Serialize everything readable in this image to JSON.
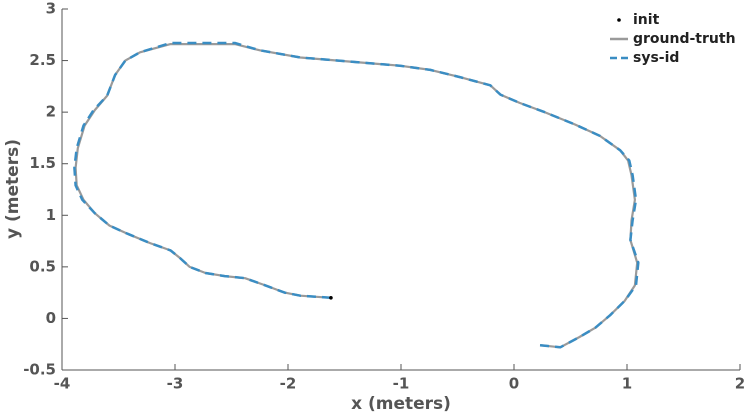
{
  "chart_data": {
    "type": "line",
    "xlabel": "x (meters)",
    "ylabel": "y (meters)",
    "xlim": [
      -4,
      2
    ],
    "ylim": [
      -0.5,
      3
    ],
    "xticks": [
      -4,
      -3,
      -2,
      -1,
      0,
      1,
      2
    ],
    "yticks": [
      -0.5,
      0,
      0.5,
      1,
      1.5,
      2,
      2.5,
      3
    ],
    "legend": "upper right",
    "series": [
      {
        "name": "init",
        "color": "#000000",
        "marker": "dot",
        "x": [
          -1.62
        ],
        "values": [
          0.2
        ]
      },
      {
        "name": "ground-truth",
        "color": "#9a9a9a",
        "linestyle": "solid",
        "x": [
          -1.62,
          -1.89,
          -2.03,
          -2.2,
          -2.38,
          -2.56,
          -2.73,
          -2.87,
          -2.96,
          -3.04,
          -3.22,
          -3.44,
          -3.58,
          -3.71,
          -3.81,
          -3.87,
          -3.88,
          -3.86,
          -3.8,
          -3.71,
          -3.6,
          -3.53,
          -3.44,
          -3.31,
          -3.04,
          -2.78,
          -2.47,
          -2.25,
          -1.89,
          -1.45,
          -1.01,
          -0.74,
          -0.48,
          -0.21,
          -0.12,
          0.05,
          0.27,
          0.54,
          0.76,
          0.94,
          1.01,
          1.04,
          1.07,
          1.04,
          1.03,
          1.09,
          1.07,
          0.98,
          0.85,
          0.72,
          0.58,
          0.41,
          0.23
        ],
        "values": [
          0.2,
          0.22,
          0.25,
          0.32,
          0.39,
          0.41,
          0.44,
          0.5,
          0.59,
          0.66,
          0.73,
          0.83,
          0.9,
          1.02,
          1.15,
          1.29,
          1.46,
          1.65,
          1.87,
          2.02,
          2.16,
          2.36,
          2.5,
          2.58,
          2.66,
          2.66,
          2.66,
          2.6,
          2.53,
          2.49,
          2.45,
          2.41,
          2.34,
          2.26,
          2.17,
          2.09,
          2.0,
          1.88,
          1.77,
          1.63,
          1.53,
          1.39,
          1.15,
          0.95,
          0.76,
          0.54,
          0.32,
          0.17,
          0.03,
          -0.09,
          -0.18,
          -0.28,
          -0.26
        ]
      },
      {
        "name": "sys-id",
        "color": "#3a8dc3",
        "linestyle": "dashed",
        "x": [
          -1.62,
          -1.89,
          -2.03,
          -2.2,
          -2.38,
          -2.56,
          -2.73,
          -2.87,
          -2.96,
          -3.04,
          -3.22,
          -3.44,
          -3.58,
          -3.71,
          -3.82,
          -3.88,
          -3.89,
          -3.87,
          -3.81,
          -3.72,
          -3.6,
          -3.53,
          -3.44,
          -3.31,
          -3.04,
          -2.78,
          -2.47,
          -2.25,
          -1.89,
          -1.45,
          -1.01,
          -0.74,
          -0.48,
          -0.21,
          -0.12,
          0.05,
          0.27,
          0.54,
          0.76,
          0.94,
          1.02,
          1.05,
          1.08,
          1.05,
          1.03,
          1.1,
          1.08,
          0.98,
          0.85,
          0.72,
          0.58,
          0.41,
          0.23
        ],
        "values": [
          0.2,
          0.22,
          0.25,
          0.32,
          0.39,
          0.41,
          0.44,
          0.5,
          0.59,
          0.66,
          0.73,
          0.83,
          0.9,
          1.02,
          1.15,
          1.29,
          1.46,
          1.65,
          1.87,
          2.02,
          2.16,
          2.36,
          2.5,
          2.58,
          2.67,
          2.67,
          2.67,
          2.6,
          2.53,
          2.49,
          2.45,
          2.41,
          2.34,
          2.26,
          2.17,
          2.09,
          2.0,
          1.88,
          1.77,
          1.63,
          1.53,
          1.39,
          1.15,
          0.95,
          0.76,
          0.54,
          0.32,
          0.17,
          0.03,
          -0.09,
          -0.18,
          -0.28,
          -0.26
        ]
      }
    ]
  }
}
